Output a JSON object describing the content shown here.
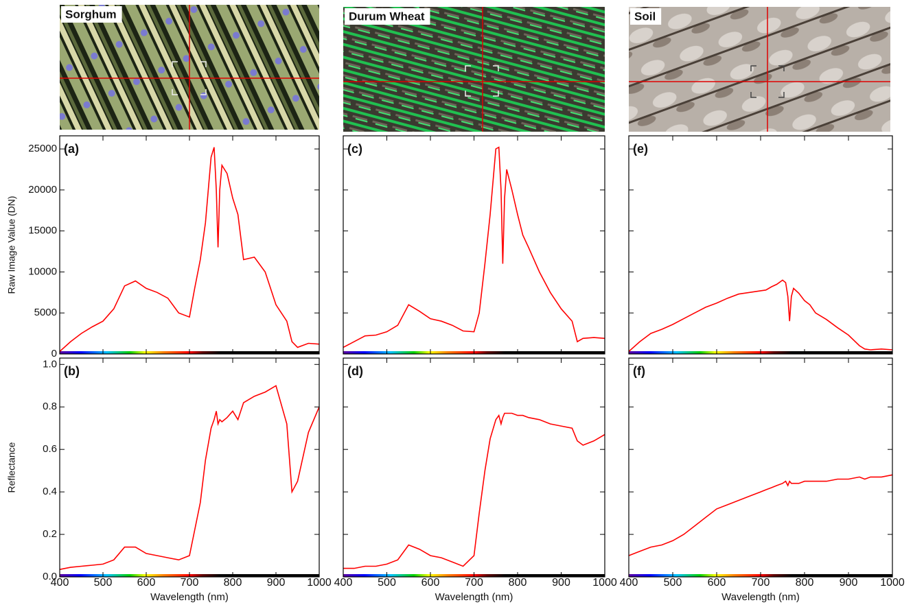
{
  "image_labels": [
    "Sorghum",
    "Durum Wheat",
    "Soil"
  ],
  "chart_data": [
    {
      "type": "line",
      "label": "(a)",
      "ylabel": "Raw Image Value (DN)",
      "x": [
        400,
        425,
        450,
        475,
        500,
        525,
        550,
        575,
        600,
        625,
        650,
        675,
        700,
        712,
        725,
        737,
        750,
        757,
        762,
        766,
        770,
        775,
        787,
        800,
        812,
        825,
        850,
        875,
        900,
        925,
        937,
        950,
        975,
        1000
      ],
      "series": [
        {
          "color": "#ff0000",
          "values": [
            300,
            1500,
            2500,
            3300,
            4000,
            5500,
            8300,
            8900,
            8000,
            7500,
            6800,
            5000,
            4500,
            8000,
            11500,
            16000,
            24000,
            25200,
            20000,
            13000,
            20000,
            23000,
            22000,
            19000,
            17000,
            11500,
            11800,
            10000,
            6000,
            4000,
            1500,
            800,
            1300,
            1200
          ]
        }
      ],
      "xlim": [
        400,
        1000
      ],
      "xticks": [
        400,
        500,
        600,
        700,
        800,
        900,
        1000
      ],
      "xtick_labels": false,
      "ylim": [
        0,
        26600
      ],
      "yticks": [
        0,
        5000,
        10000,
        15000,
        20000,
        25000
      ],
      "ytick_labels": true
    },
    {
      "type": "line",
      "label": "(b)",
      "ylabel": "Reflectance",
      "xlabel": "Wavelength (nm)",
      "x": [
        400,
        425,
        450,
        475,
        500,
        525,
        550,
        575,
        600,
        625,
        650,
        675,
        700,
        712,
        725,
        737,
        750,
        757,
        762,
        766,
        770,
        775,
        787,
        800,
        812,
        825,
        850,
        875,
        900,
        925,
        937,
        950,
        975,
        1000
      ],
      "series": [
        {
          "color": "#ff0000",
          "values": [
            0.035,
            0.045,
            0.05,
            0.055,
            0.06,
            0.08,
            0.14,
            0.14,
            0.11,
            0.1,
            0.09,
            0.08,
            0.1,
            0.22,
            0.35,
            0.55,
            0.7,
            0.74,
            0.78,
            0.72,
            0.74,
            0.73,
            0.75,
            0.78,
            0.74,
            0.82,
            0.85,
            0.87,
            0.9,
            0.72,
            0.4,
            0.45,
            0.68,
            0.8
          ]
        }
      ],
      "xlim": [
        400,
        1000
      ],
      "xticks": [
        400,
        500,
        600,
        700,
        800,
        900,
        1000
      ],
      "xtick_labels": true,
      "ylim": [
        0,
        1.03
      ],
      "yticks": [
        {
          "value": 0,
          "label": "0.0"
        },
        0.2,
        0.4,
        0.6,
        0.8,
        {
          "value": 1,
          "label": "1.0"
        }
      ],
      "ytick_labels": true
    },
    {
      "type": "line",
      "label": "(c)",
      "x": [
        400,
        425,
        450,
        475,
        500,
        525,
        550,
        575,
        600,
        625,
        650,
        675,
        700,
        712,
        725,
        737,
        750,
        757,
        762,
        766,
        770,
        775,
        787,
        800,
        812,
        825,
        850,
        875,
        900,
        925,
        937,
        950,
        975,
        1000
      ],
      "series": [
        {
          "color": "#ff0000",
          "values": [
            800,
            1500,
            2200,
            2300,
            2700,
            3500,
            6000,
            5200,
            4300,
            4000,
            3500,
            2800,
            2700,
            5000,
            11000,
            17000,
            25000,
            25200,
            20000,
            11000,
            19000,
            22500,
            20000,
            17000,
            14500,
            13000,
            10000,
            7500,
            5500,
            4000,
            1500,
            1900,
            2000,
            1900
          ]
        }
      ],
      "xlim": [
        400,
        1000
      ],
      "xticks": [
        400,
        500,
        600,
        700,
        800,
        900,
        1000
      ],
      "xtick_labels": false,
      "ylim": [
        0,
        26600
      ],
      "yticks": [
        0,
        5000,
        10000,
        15000,
        20000,
        25000
      ],
      "ytick_labels": false
    },
    {
      "type": "line",
      "label": "(d)",
      "xlabel": "Wavelength (nm)",
      "x": [
        400,
        425,
        450,
        475,
        500,
        525,
        550,
        575,
        600,
        625,
        650,
        675,
        700,
        712,
        725,
        737,
        750,
        757,
        762,
        766,
        770,
        775,
        787,
        800,
        812,
        825,
        850,
        875,
        900,
        925,
        937,
        950,
        975,
        1000
      ],
      "series": [
        {
          "color": "#ff0000",
          "values": [
            0.04,
            0.04,
            0.05,
            0.05,
            0.06,
            0.08,
            0.15,
            0.13,
            0.1,
            0.09,
            0.07,
            0.05,
            0.1,
            0.3,
            0.5,
            0.65,
            0.74,
            0.76,
            0.72,
            0.75,
            0.77,
            0.77,
            0.77,
            0.76,
            0.76,
            0.75,
            0.74,
            0.72,
            0.71,
            0.7,
            0.64,
            0.62,
            0.64,
            0.67
          ]
        }
      ],
      "xlim": [
        400,
        1000
      ],
      "xticks": [
        400,
        500,
        600,
        700,
        800,
        900,
        1000
      ],
      "xtick_labels": true,
      "ylim": [
        0,
        1.03
      ],
      "yticks": [
        0,
        0.2,
        0.4,
        0.6,
        0.8,
        1
      ],
      "ytick_labels": false
    },
    {
      "type": "line",
      "label": "(e)",
      "x": [
        400,
        425,
        450,
        475,
        500,
        525,
        550,
        575,
        600,
        625,
        650,
        675,
        700,
        712,
        725,
        737,
        750,
        757,
        762,
        766,
        770,
        775,
        787,
        800,
        812,
        825,
        850,
        875,
        900,
        925,
        937,
        950,
        975,
        1000
      ],
      "series": [
        {
          "color": "#ff0000",
          "values": [
            300,
            1500,
            2500,
            3000,
            3600,
            4300,
            5000,
            5700,
            6200,
            6800,
            7300,
            7500,
            7700,
            7800,
            8200,
            8500,
            9000,
            8700,
            7000,
            4000,
            7000,
            8000,
            7400,
            6500,
            6000,
            5000,
            4200,
            3200,
            2300,
            1000,
            600,
            500,
            600,
            500
          ]
        }
      ],
      "xlim": [
        400,
        1000
      ],
      "xticks": [
        400,
        500,
        600,
        700,
        800,
        900,
        1000
      ],
      "xtick_labels": false,
      "ylim": [
        0,
        26600
      ],
      "yticks": [
        0,
        5000,
        10000,
        15000,
        20000,
        25000
      ],
      "ytick_labels": false
    },
    {
      "type": "line",
      "label": "(f)",
      "xlabel": "Wavelength (nm)",
      "x": [
        400,
        425,
        450,
        475,
        500,
        525,
        550,
        575,
        600,
        625,
        650,
        675,
        700,
        712,
        725,
        737,
        750,
        757,
        762,
        766,
        770,
        775,
        787,
        800,
        812,
        825,
        850,
        875,
        900,
        925,
        937,
        950,
        975,
        1000
      ],
      "series": [
        {
          "color": "#ff0000",
          "values": [
            0.1,
            0.12,
            0.14,
            0.15,
            0.17,
            0.2,
            0.24,
            0.28,
            0.32,
            0.34,
            0.36,
            0.38,
            0.4,
            0.41,
            0.42,
            0.43,
            0.44,
            0.45,
            0.43,
            0.45,
            0.44,
            0.44,
            0.44,
            0.45,
            0.45,
            0.45,
            0.45,
            0.46,
            0.46,
            0.47,
            0.46,
            0.47,
            0.47,
            0.48
          ]
        }
      ],
      "xlim": [
        400,
        1000
      ],
      "xticks": [
        400,
        500,
        600,
        700,
        800,
        900,
        1000
      ],
      "xtick_labels": true,
      "ylim": [
        0,
        1.03
      ],
      "yticks": [
        0,
        0.2,
        0.4,
        0.6,
        0.8,
        1
      ],
      "ytick_labels": false
    }
  ]
}
